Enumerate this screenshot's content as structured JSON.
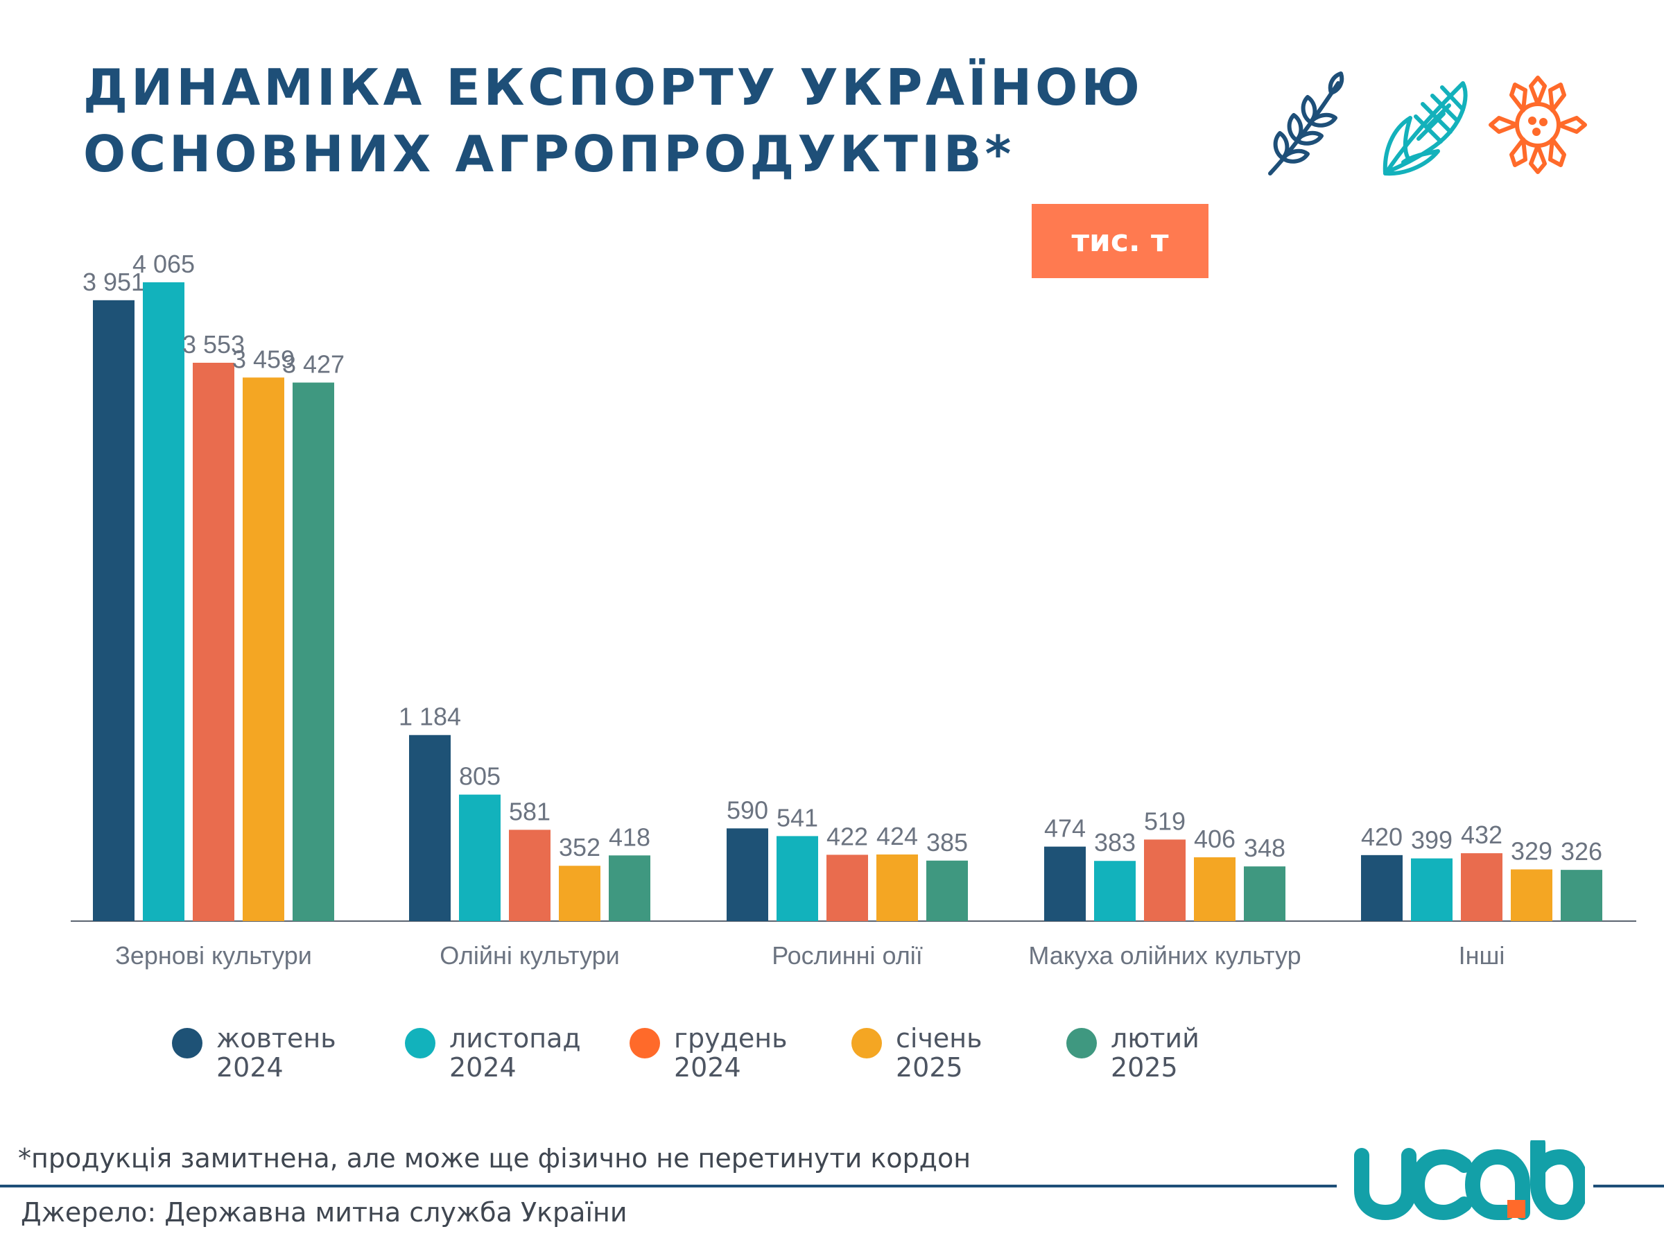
{
  "header": {
    "title_line1": "ДИНАМІКА ЕКСПОРТУ УКРАЇНОЮ",
    "title_line2": "ОСНОВНИХ АГРОПРОДУКТІВ*",
    "unit": "тис. т",
    "icons": [
      "wheat-icon",
      "corn-icon",
      "sunflower-icon"
    ],
    "icon_colors": {
      "wheat": "#1e4f78",
      "corn": "#13b1bb",
      "sunflower": "#ff6a2a"
    }
  },
  "chart_data": {
    "type": "bar",
    "title": "ДИНАМІКА ЕКСПОРТУ УКРАЇНОЮ ОСНОВНИХ АГРОПРОДУКТІВ*",
    "xlabel": "",
    "ylabel": "",
    "unit": "тис. т",
    "ylim": [
      0,
      4065
    ],
    "grid": false,
    "legend_position": "bottom",
    "categories": [
      "Зернові культури",
      "Олійні культури",
      "Рослинні олії",
      "Макуха олійних культур",
      "Інші"
    ],
    "series": [
      {
        "name": "жовтень\n2024",
        "color": "#1e5276",
        "values": [
          3951,
          1184,
          590,
          474,
          420
        ],
        "labels": [
          "3 951",
          "1 184",
          "590",
          "474",
          "420"
        ]
      },
      {
        "name": "листопад\n2024",
        "color": "#12b2bc",
        "values": [
          4065,
          805,
          541,
          383,
          399
        ],
        "labels": [
          "4 065",
          "805",
          "541",
          "383",
          "399"
        ]
      },
      {
        "name": "грудень\n2024",
        "color": "#e96c4e",
        "values": [
          3553,
          581,
          422,
          519,
          432
        ],
        "labels": [
          "3 553",
          "581",
          "422",
          "519",
          "432"
        ]
      },
      {
        "name": "січень\n2025",
        "color": "#f4a623",
        "values": [
          3459,
          352,
          424,
          406,
          329
        ],
        "labels": [
          "3 459",
          "352",
          "424",
          "406",
          "329"
        ]
      },
      {
        "name": "лютий\n2025",
        "color": "#3f9880",
        "values": [
          3427,
          418,
          385,
          348,
          326
        ],
        "labels": [
          "3 427",
          "418",
          "385",
          "348",
          "326"
        ]
      }
    ]
  },
  "legend_dot_colors": [
    "#1e5276",
    "#12b2bc",
    "#ff6a2a",
    "#f4a623",
    "#3f9880"
  ],
  "footer": {
    "footnote": "*продукція замитнена, але може ще фізично не перетинути кордон",
    "source": "Джерело: Державна митна служба України",
    "logo_text": "ucab",
    "logo_colors": {
      "main": "#13a0a8",
      "accent": "#ff6a2a"
    }
  }
}
